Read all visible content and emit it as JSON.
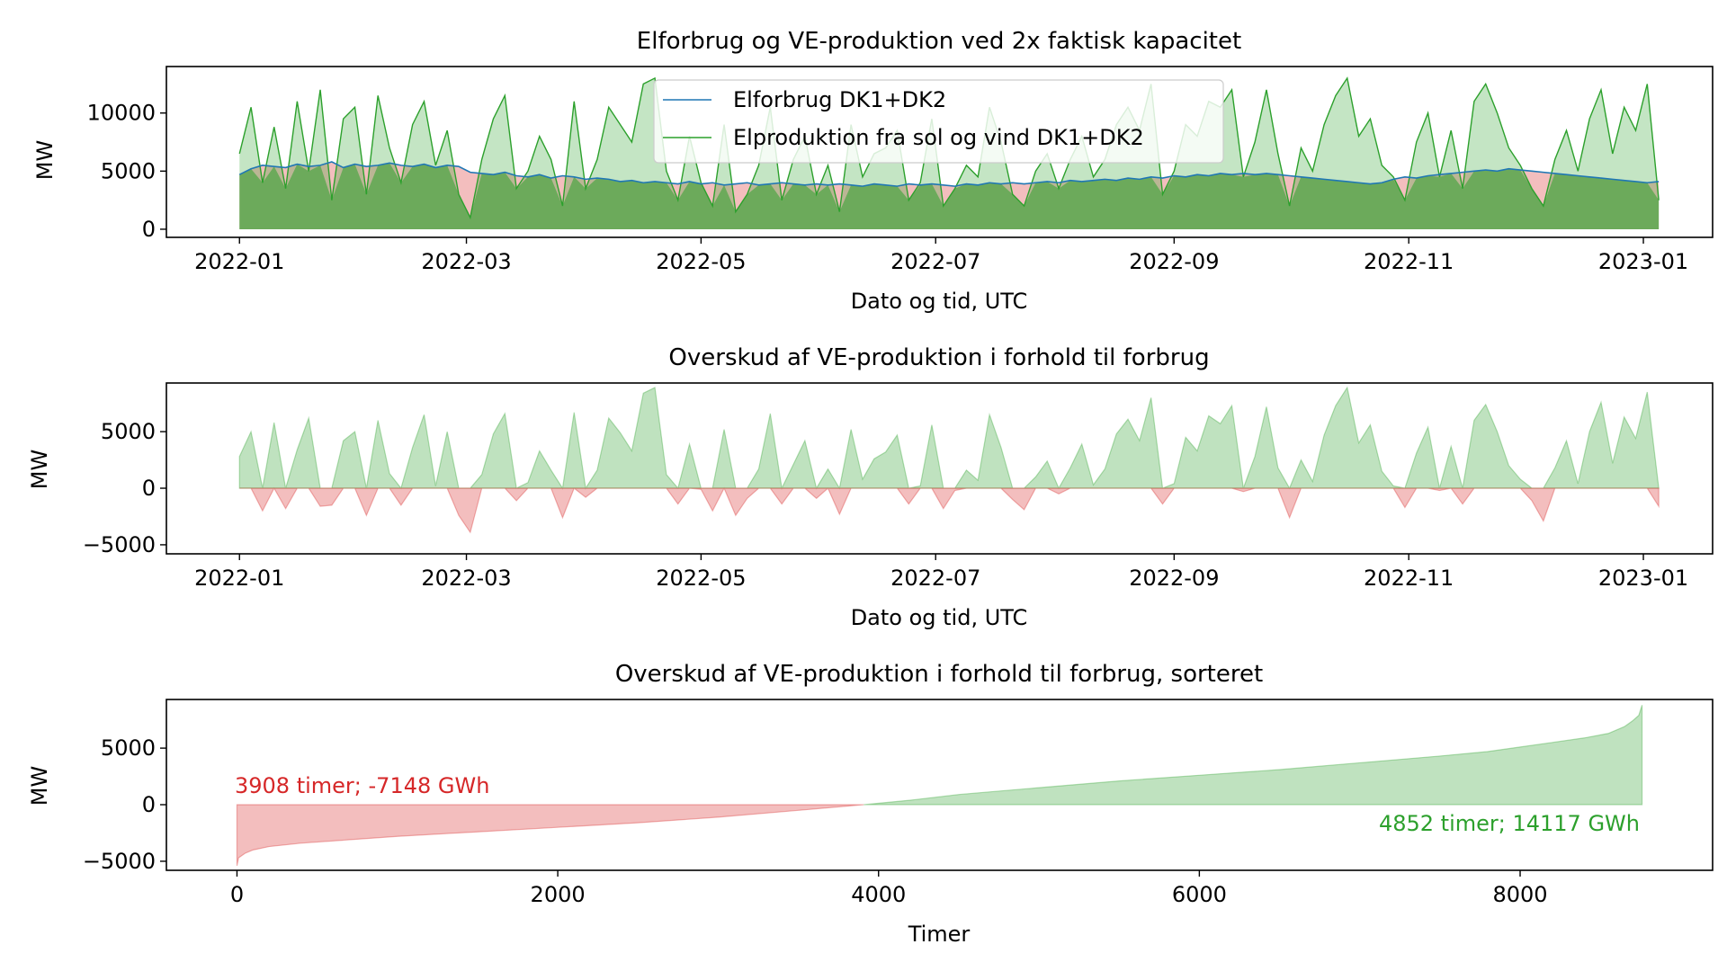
{
  "colors": {
    "consumption": "#1f77b4",
    "production": "#2ca02c",
    "surplus": "#2ca02c",
    "deficit": "#d62728"
  },
  "chart_data": [
    {
      "type": "area",
      "title": "Elforbrug og VE-produktion ved 2x faktisk kapacitet",
      "xlabel": "Dato og tid, UTC",
      "ylabel": "MW",
      "x_type": "date",
      "xlim": [
        "2021-12-13",
        "2023-01-19"
      ],
      "ylim": [
        -700,
        14000
      ],
      "x_ticks": [
        "2022-01",
        "2022-03",
        "2022-05",
        "2022-07",
        "2022-09",
        "2022-11",
        "2023-01"
      ],
      "y_ticks": [
        0,
        5000,
        10000
      ],
      "legend_position": "top-center",
      "series": [
        {
          "name": "Elforbrug DK1+DK2",
          "style": "line",
          "color": "#1f77b4",
          "x_start": "2022-01-01",
          "x_step_days": 3,
          "values": [
            4700,
            5200,
            5500,
            5400,
            5300,
            5600,
            5400,
            5500,
            5800,
            5300,
            5600,
            5400,
            5500,
            5700,
            5500,
            5400,
            5600,
            5300,
            5500,
            5400,
            4900,
            4800,
            4700,
            4900,
            4600,
            4500,
            4700,
            4400,
            4600,
            4500,
            4300,
            4400,
            4300,
            4100,
            4200,
            4000,
            4100,
            4000,
            3900,
            4100,
            3900,
            4000,
            3800,
            3900,
            4000,
            3800,
            3900,
            4000,
            3900,
            3800,
            3900,
            3800,
            3900,
            3800,
            3700,
            3900,
            3800,
            3700,
            3900,
            3800,
            3900,
            3800,
            3700,
            3900,
            3800,
            4000,
            3900,
            4000,
            3900,
            4000,
            4100,
            4000,
            4200,
            4100,
            4200,
            4300,
            4200,
            4400,
            4300,
            4500,
            4400,
            4600,
            4500,
            4700,
            4600,
            4800,
            4700,
            4800,
            4700,
            4800,
            4700,
            4600,
            4500,
            4400,
            4300,
            4200,
            4100,
            4000,
            3900,
            4000,
            4300,
            4500,
            4400,
            4600,
            4700,
            4800,
            4900,
            5000,
            5100,
            5000,
            5200,
            5100,
            5000,
            4900,
            4800,
            4700,
            4600,
            4500,
            4400,
            4300,
            4200,
            4100,
            4000,
            4100
          ]
        },
        {
          "name": "Elproduktion fra sol og vind DK1+DK2",
          "style": "line+fill",
          "color": "#2ca02c",
          "x_start": "2022-01-01",
          "x_step_days": 3,
          "values": [
            6500,
            10500,
            4000,
            8800,
            3500,
            11000,
            5000,
            12000,
            2500,
            9500,
            10500,
            3000,
            11500,
            7000,
            4000,
            9000,
            11000,
            5500,
            8500,
            3000,
            1000,
            6000,
            9500,
            11500,
            3500,
            5000,
            8000,
            6000,
            2000,
            11000,
            3500,
            6000,
            10500,
            9000,
            7500,
            12500,
            13000,
            5000,
            2500,
            8000,
            4000,
            2000,
            9000,
            1500,
            3000,
            5500,
            10500,
            2500,
            6000,
            8000,
            3000,
            5500,
            1500,
            9000,
            4500,
            6500,
            7000,
            8500,
            2500,
            4000,
            9500,
            2000,
            3500,
            5500,
            4500,
            10500,
            7500,
            3000,
            2000,
            5000,
            6500,
            3500,
            6000,
            8000,
            4500,
            6000,
            9000,
            10500,
            8500,
            12500,
            3000,
            5000,
            9000,
            8000,
            11000,
            10500,
            12000,
            4500,
            7500,
            12000,
            6500,
            2000,
            7000,
            5000,
            9000,
            11500,
            13000,
            8000,
            9500,
            5500,
            4500,
            2500,
            7500,
            10000,
            4500,
            8500,
            3500,
            11000,
            12500,
            10000,
            7000,
            5500,
            3500,
            2000,
            6000,
            8500,
            5000,
            9500,
            12000,
            6500,
            10500,
            8500,
            12500,
            2500
          ]
        }
      ],
      "fill_between": "consumption shaded red where above production"
    },
    {
      "type": "area",
      "title": "Overskud af VE-produktion i forhold til forbrug",
      "xlabel": "Dato og tid, UTC",
      "ylabel": "MW",
      "x_type": "date",
      "xlim": [
        "2021-12-13",
        "2023-01-19"
      ],
      "ylim": [
        -5800,
        9300
      ],
      "x_ticks": [
        "2022-01",
        "2022-03",
        "2022-05",
        "2022-07",
        "2022-09",
        "2022-11",
        "2023-01"
      ],
      "y_ticks": [
        -5000,
        0,
        5000
      ],
      "series": [
        {
          "name": "",
          "style": "fill",
          "x_start": "2022-01-01",
          "x_step_days": 3,
          "values": [
            2800,
            5000,
            -2000,
            5800,
            -1800,
            3400,
            6200,
            -1600,
            -1500,
            4200,
            5000,
            -2400,
            6000,
            1300,
            -1500,
            3600,
            6500,
            200,
            5000,
            -2400,
            -3900,
            1200,
            4800,
            6600,
            -1100,
            500,
            3300,
            1600,
            -2600,
            6700,
            -800,
            1600,
            6200,
            4900,
            3300,
            8400,
            8900,
            1200,
            -1400,
            3900,
            -100,
            -2000,
            5200,
            -2400,
            -900,
            1700,
            6600,
            -1400,
            2100,
            4200,
            -900,
            1700,
            -2300,
            5200,
            800,
            2600,
            3200,
            4700,
            -1400,
            200,
            5600,
            -1800,
            -200,
            1600,
            700,
            6500,
            3600,
            -1000,
            -1900,
            1000,
            2400,
            -500,
            1800,
            3900,
            300,
            1700,
            4800,
            6100,
            4200,
            8000,
            -1400,
            400,
            4500,
            3300,
            6400,
            5700,
            7300,
            -300,
            2800,
            7200,
            1800,
            -2600,
            2500,
            600,
            4700,
            7300,
            8900,
            4000,
            5600,
            1500,
            200,
            -1700,
            3100,
            5400,
            -200,
            3700,
            -1400,
            6000,
            7400,
            5000,
            2000,
            800,
            -1100,
            -2900,
            1800,
            4200,
            400,
            5000,
            7600,
            2200,
            6300,
            4400,
            8500,
            -1600
          ]
        }
      ]
    },
    {
      "type": "area",
      "title": "Overskud af VE-produktion i forhold til forbrug, sorteret",
      "xlabel": "Timer",
      "ylabel": "MW",
      "xlim": [
        -440,
        9200
      ],
      "ylim": [
        -5800,
        9300
      ],
      "x_ticks": [
        0,
        2000,
        4000,
        6000,
        8000
      ],
      "y_ticks": [
        -5000,
        0,
        5000
      ],
      "series": [
        {
          "name": "",
          "style": "fill",
          "x": [
            0,
            10,
            50,
            100,
            200,
            400,
            700,
            1000,
            1500,
            2000,
            2500,
            3000,
            3500,
            3908,
            4200,
            4500,
            5000,
            5500,
            6000,
            6500,
            7000,
            7500,
            7800,
            8000,
            8200,
            8400,
            8550,
            8650,
            8700,
            8740,
            8760
          ],
          "values": [
            -5400,
            -4700,
            -4300,
            -4000,
            -3700,
            -3400,
            -3100,
            -2800,
            -2400,
            -2000,
            -1600,
            -1100,
            -500,
            0,
            400,
            900,
            1500,
            2100,
            2600,
            3100,
            3700,
            4300,
            4700,
            5100,
            5500,
            5900,
            6300,
            6900,
            7400,
            7900,
            8800
          ]
        }
      ],
      "annotations": [
        {
          "text": "3908 timer; -7148 GWh",
          "color": "#d62728"
        },
        {
          "text": "4852 timer; 14117 GWh",
          "color": "#2ca02c"
        }
      ]
    }
  ]
}
